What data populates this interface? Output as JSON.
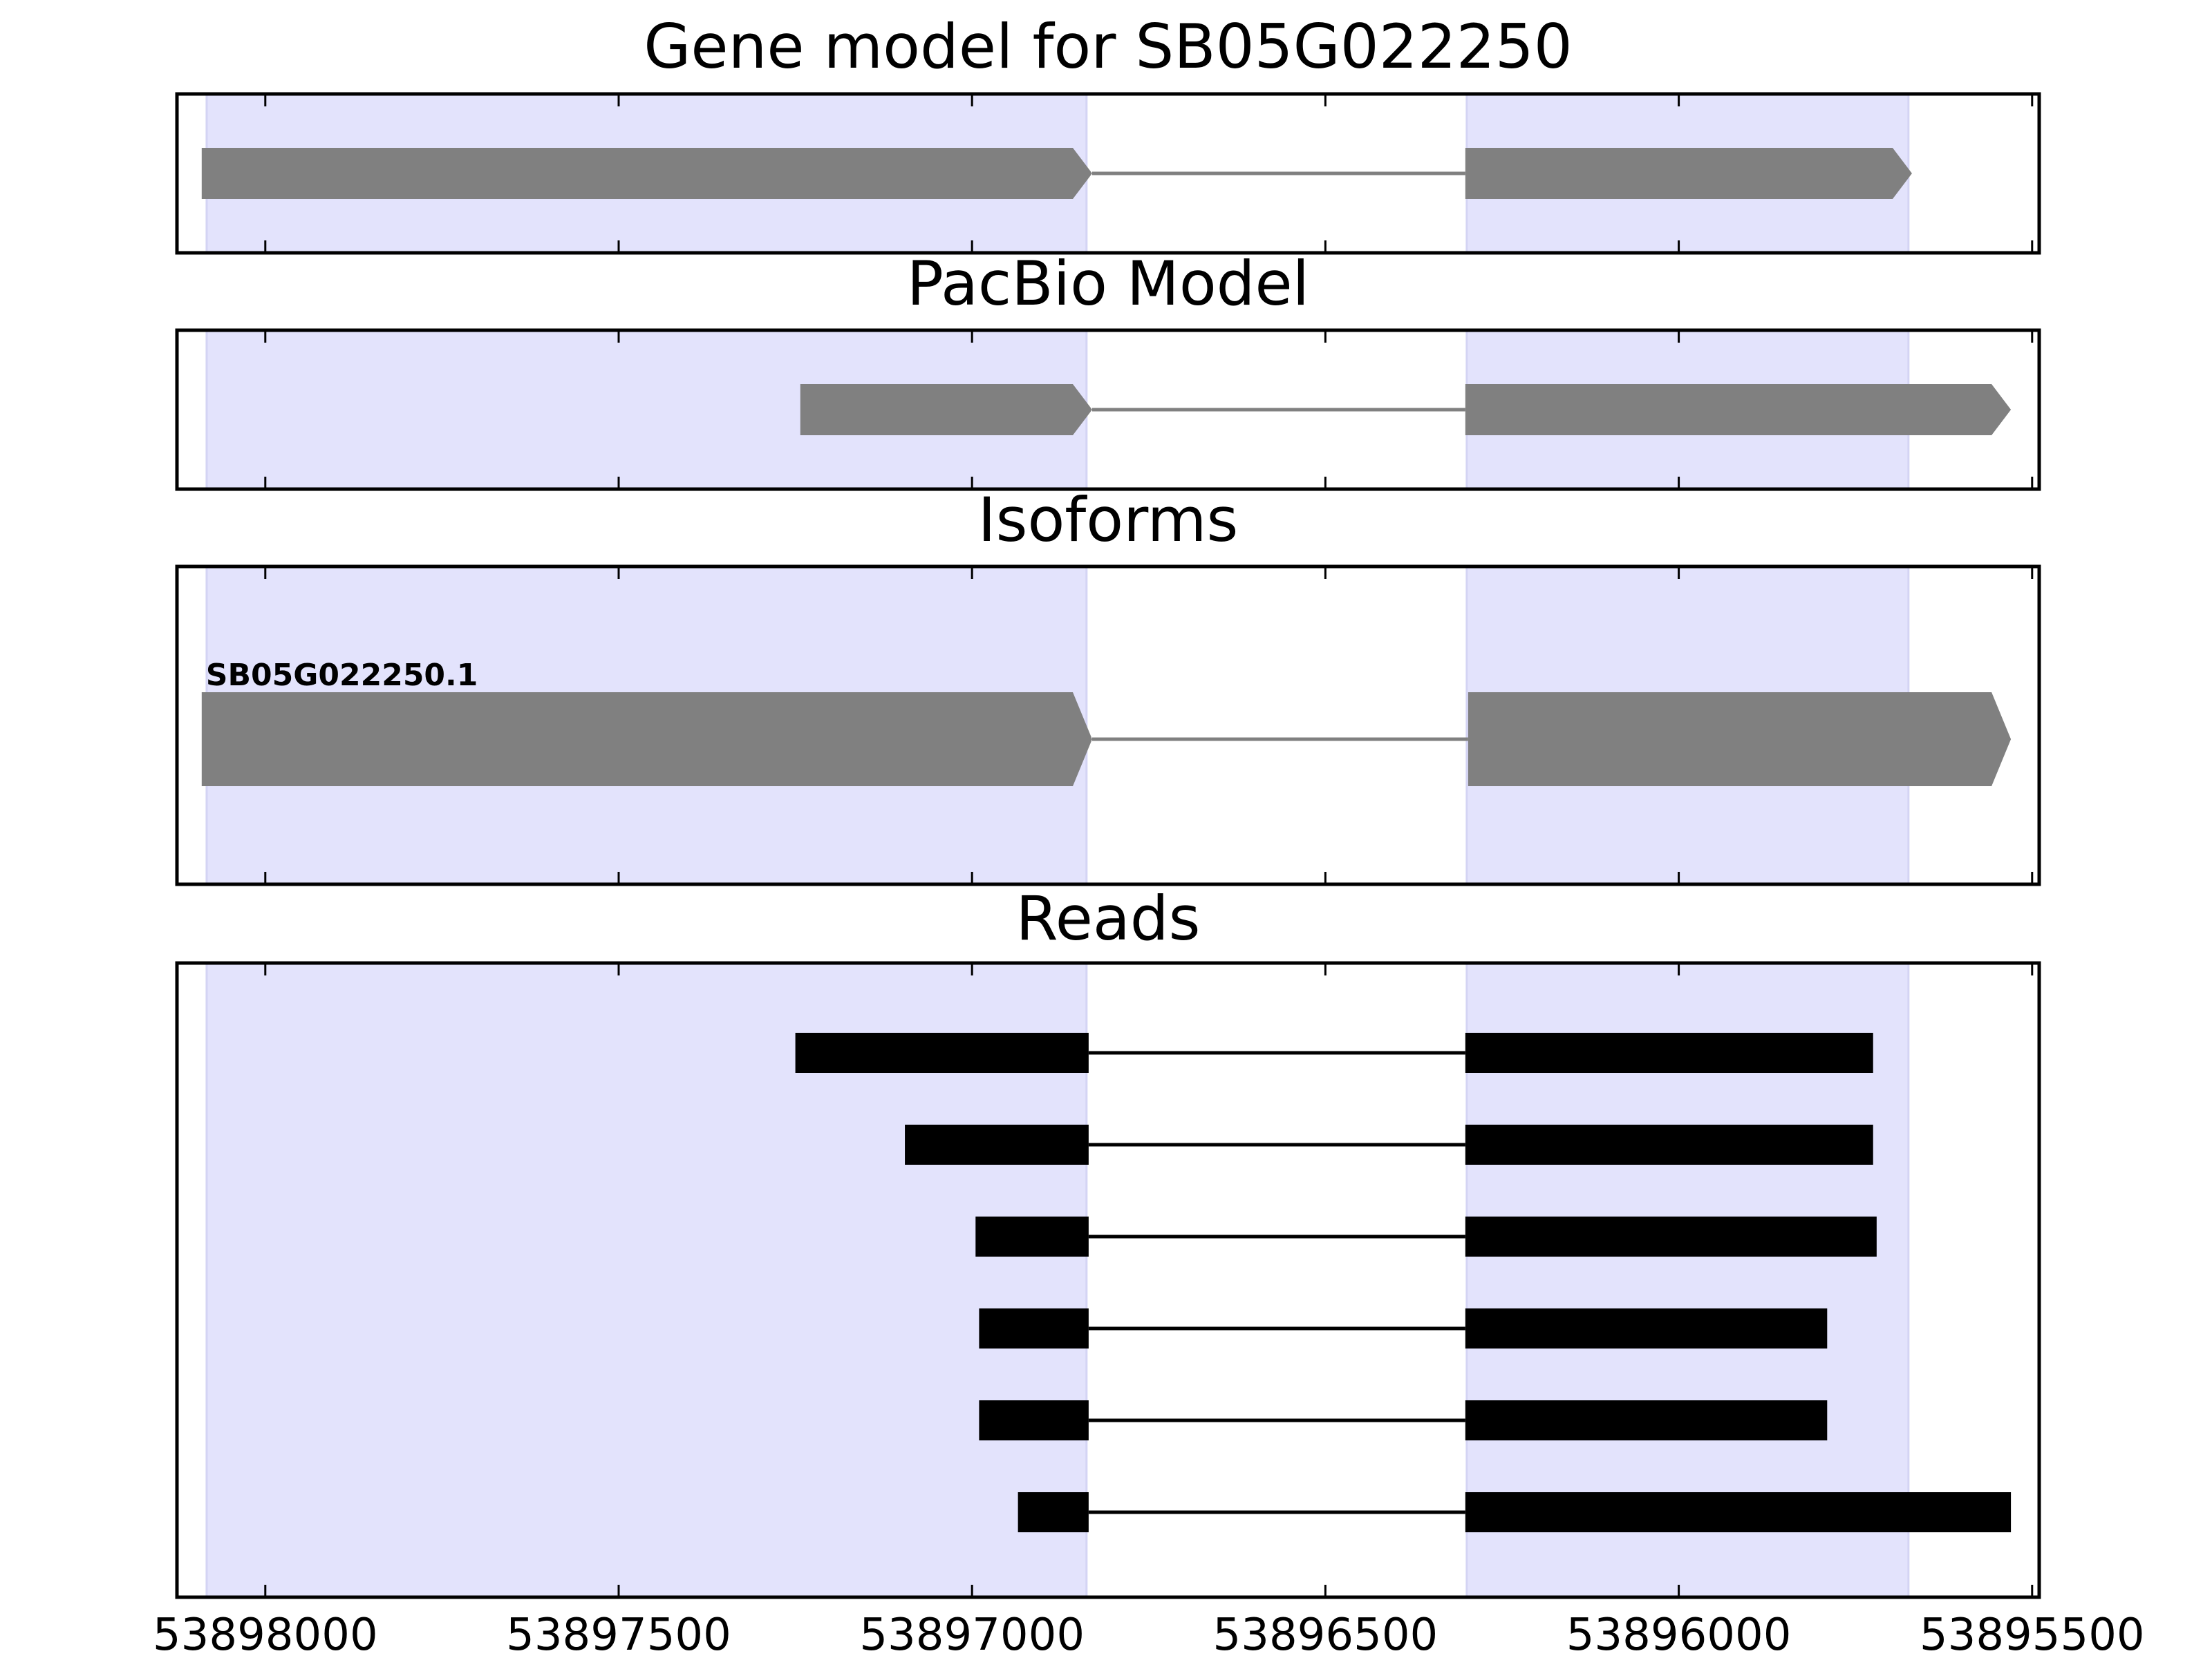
{
  "chart_data": {
    "type": "gene-structure",
    "x_axis": {
      "reversed": true,
      "xlim": [
        53898125,
        53895490
      ],
      "ticks": [
        53898000,
        53897500,
        53897000,
        53896500,
        53896000,
        53895500
      ],
      "tick_labels": [
        "53898000",
        "53897500",
        "53897000",
        "53896500",
        "53896000",
        "53895500"
      ]
    },
    "highlight_regions": [
      {
        "start": 53898083,
        "end": 53896838
      },
      {
        "start": 53896300,
        "end": 53895675
      }
    ],
    "highlight_color": "#e3e3fc",
    "panels": [
      {
        "title": "Gene model for SB05G022250",
        "kind": "model",
        "color": "#808080",
        "features": [
          {
            "exons": [
              [
                53898090,
                53896830
              ],
              [
                53896302,
                53895670
              ]
            ]
          }
        ]
      },
      {
        "title": "PacBio Model",
        "kind": "model",
        "color": "#808080",
        "features": [
          {
            "exons": [
              [
                53897243,
                53896830
              ],
              [
                53896302,
                53895530
              ]
            ]
          }
        ]
      },
      {
        "title": "Isoforms",
        "kind": "isoform",
        "color": "#808080",
        "features": [
          {
            "label": "SB05G022250.1",
            "exons": [
              [
                53898090,
                53896830
              ],
              [
                53896298,
                53895530
              ]
            ]
          }
        ]
      },
      {
        "title": "Reads",
        "kind": "reads",
        "color": "#000000",
        "features": [
          {
            "exons": [
              [
                53897250,
                53896835
              ],
              [
                53896302,
                53895725
              ]
            ]
          },
          {
            "exons": [
              [
                53897095,
                53896835
              ],
              [
                53896302,
                53895725
              ]
            ]
          },
          {
            "exons": [
              [
                53896995,
                53896835
              ],
              [
                53896302,
                53895720
              ]
            ]
          },
          {
            "exons": [
              [
                53896990,
                53896835
              ],
              [
                53896302,
                53895790
              ]
            ]
          },
          {
            "exons": [
              [
                53896990,
                53896835
              ],
              [
                53896302,
                53895790
              ]
            ]
          },
          {
            "exons": [
              [
                53896935,
                53896835
              ],
              [
                53896302,
                53895530
              ]
            ]
          }
        ]
      }
    ]
  }
}
